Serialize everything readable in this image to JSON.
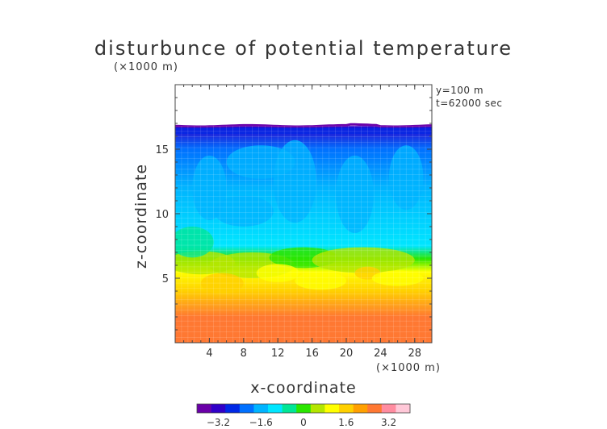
{
  "chart_data": {
    "type": "heatmap",
    "title": "disturbunce of potential temperature",
    "xlabel": "x-coordinate",
    "ylabel": "z-coordinate",
    "x_unit": "(×1000 m)",
    "y_unit": "(×1000 m)",
    "annotations": [
      "y=100  m",
      "t=62000 sec"
    ],
    "xlim": [
      0,
      30
    ],
    "ylim": [
      0,
      20
    ],
    "x_ticks": [
      4,
      8,
      12,
      16,
      20,
      24,
      28
    ],
    "y_ticks": [
      5,
      10,
      15
    ],
    "colorbar": {
      "ticks": [
        "−3.2",
        "−1.6",
        "0",
        "1.6",
        "3.2"
      ],
      "tick_values": [
        -3.2,
        -1.6,
        0,
        1.6,
        3.2
      ],
      "range": [
        -4.0,
        4.0
      ],
      "colors": [
        "#6a00a8",
        "#3000c8",
        "#0028e6",
        "#0070ff",
        "#00b4ff",
        "#00e6ff",
        "#00e696",
        "#2ae600",
        "#b4e600",
        "#ffff00",
        "#ffd000",
        "#ffa000",
        "#ff7832",
        "#ff8ca0",
        "#ffc8d8"
      ]
    },
    "data_top_z": 16.8,
    "vertical_profile": [
      {
        "z": 0.0,
        "value": 2.6
      },
      {
        "z": 2.0,
        "value": 2.4
      },
      {
        "z": 4.0,
        "value": 1.8
      },
      {
        "z": 5.5,
        "value": 0.8
      },
      {
        "z": 6.5,
        "value": 0.0
      },
      {
        "z": 7.5,
        "value": -1.3
      },
      {
        "z": 12.0,
        "value": -1.5
      },
      {
        "z": 15.0,
        "value": -2.0
      },
      {
        "z": 16.8,
        "value": -3.0
      }
    ]
  }
}
